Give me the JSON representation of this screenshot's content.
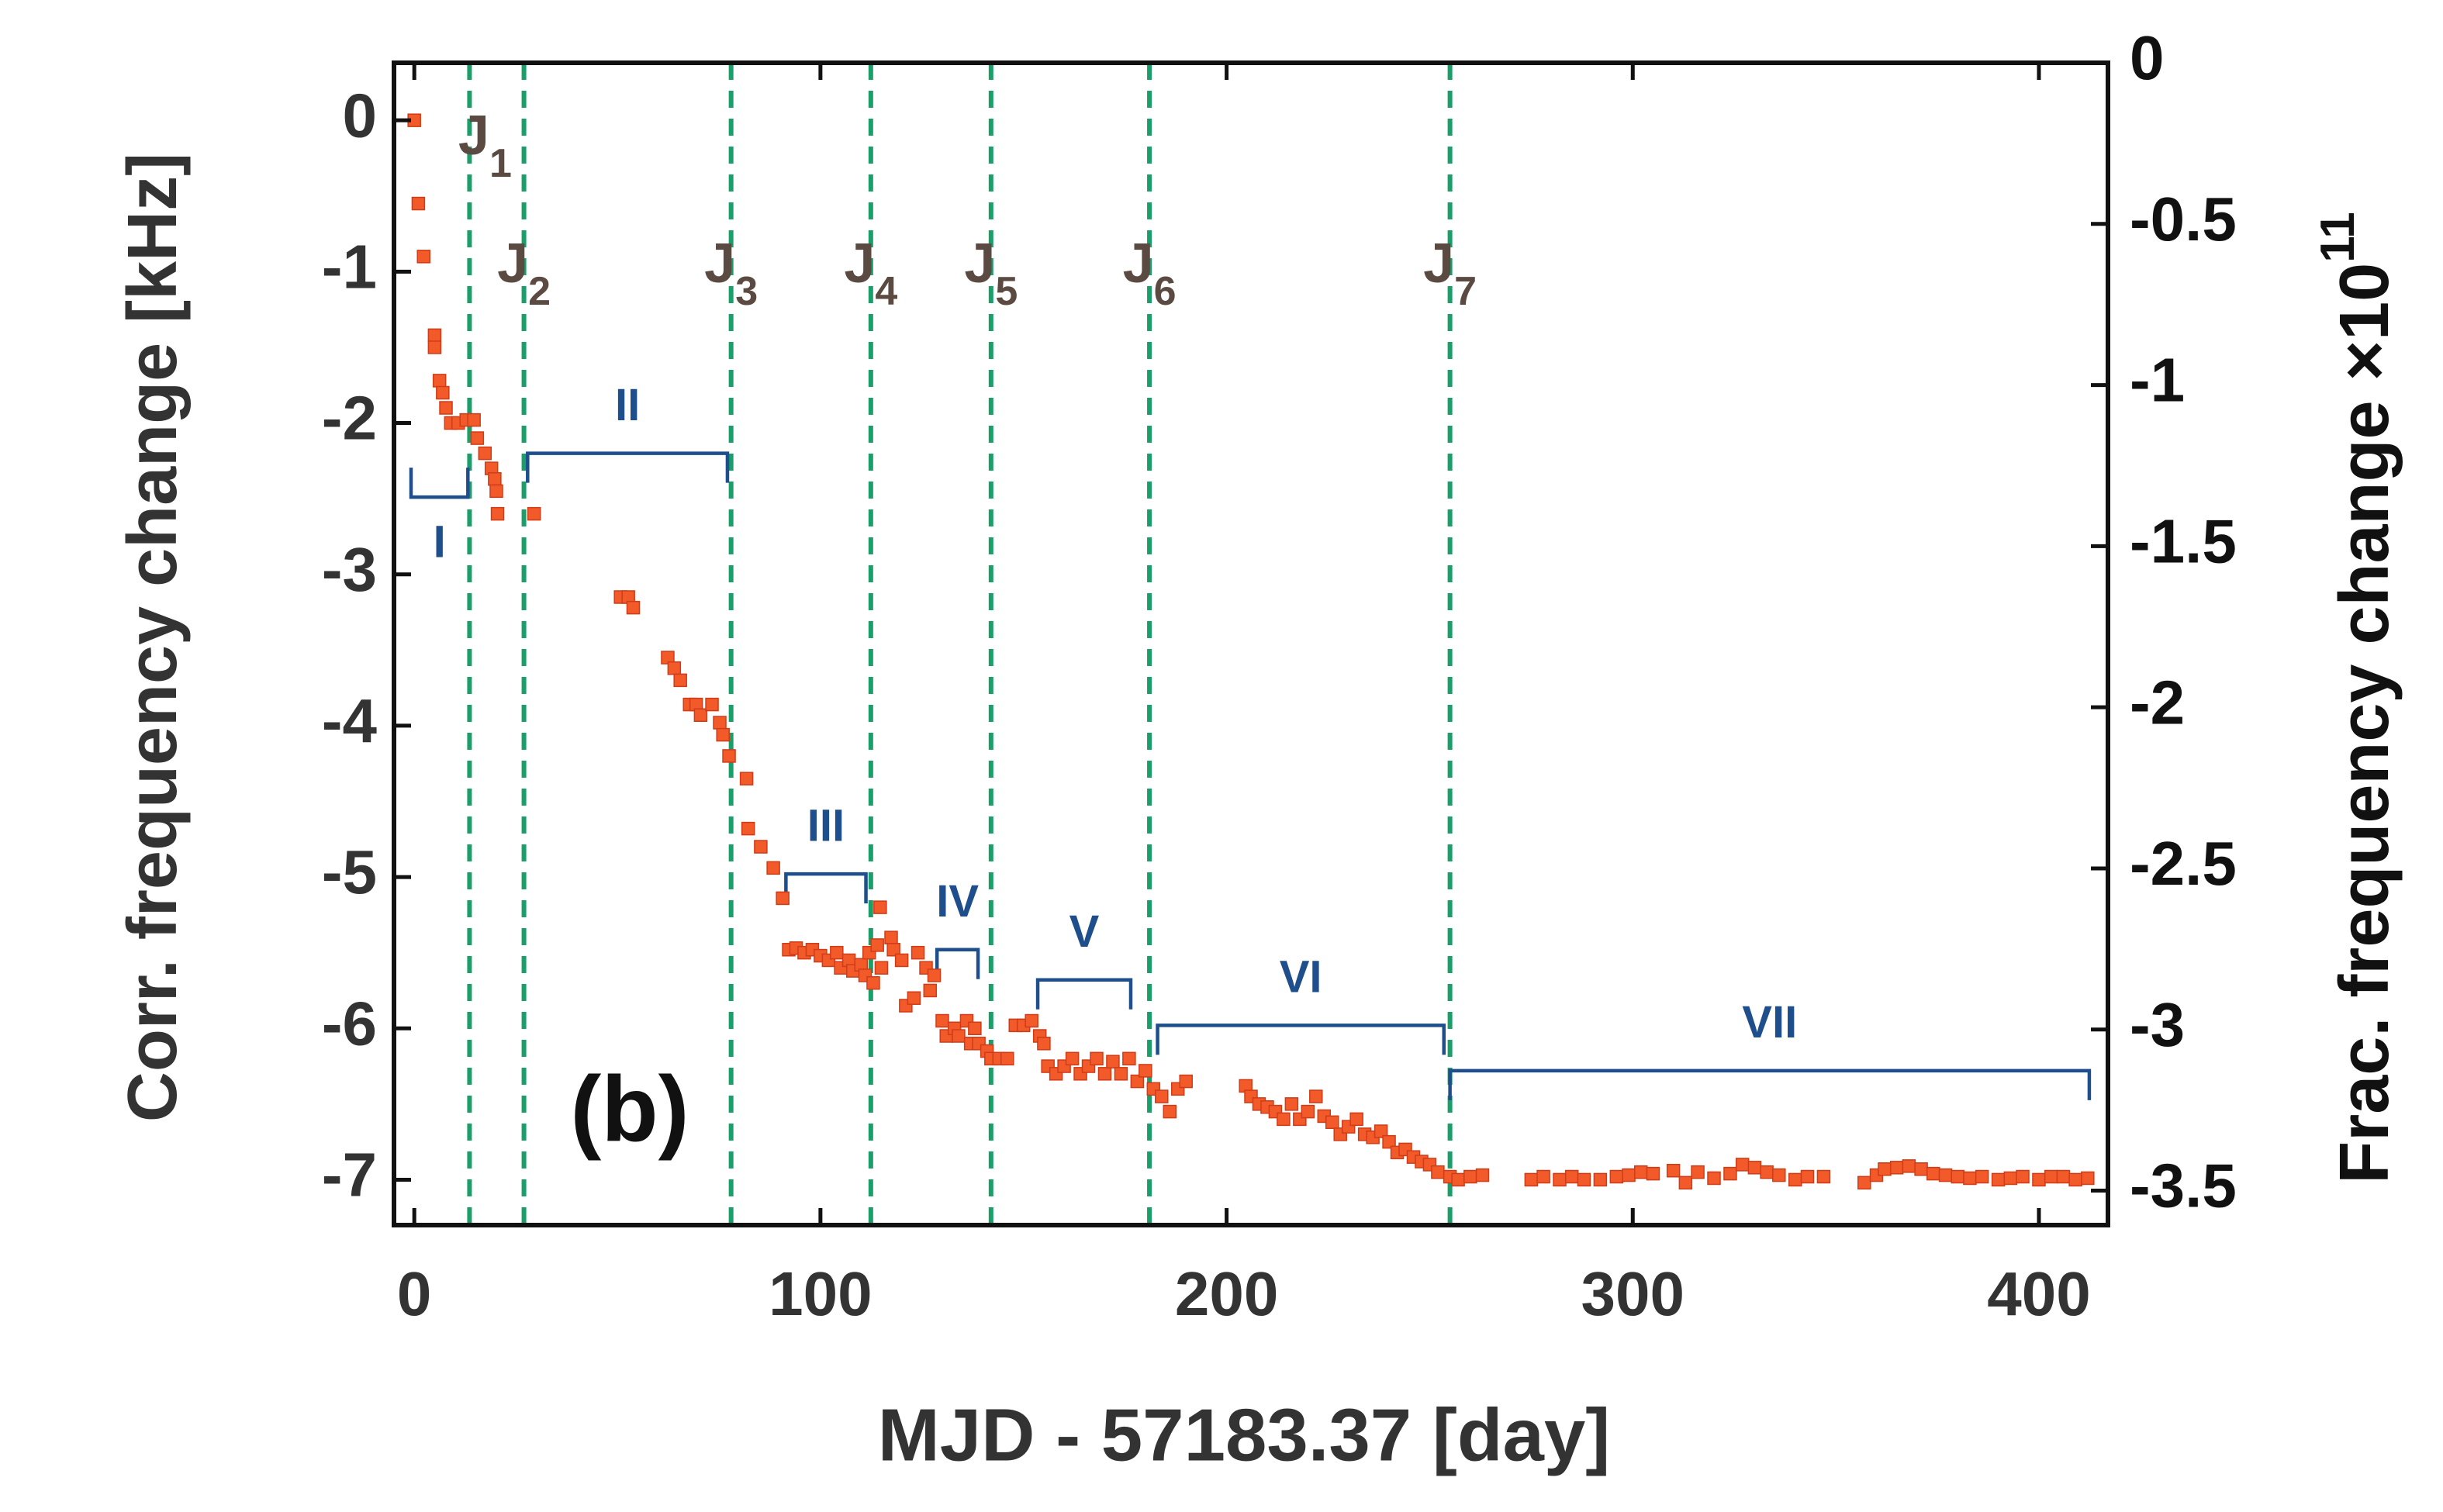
{
  "chart_data": {
    "type": "scatter",
    "xlabel": "MJD - 57183.37 [day]",
    "ylabel": "Corr. frequency change [kHz]",
    "y2label": "Frac. frequency change ×10",
    "y2label_exponent": "11",
    "color": "#f25a2a",
    "xlim": [
      -5,
      417
    ],
    "ylim": [
      -7.3,
      0.38
    ],
    "y2lim": [
      -3.607,
      0
    ],
    "xticks": [
      0,
      100,
      200,
      300,
      400
    ],
    "yticks": [
      0,
      -1,
      -2,
      -3,
      -4,
      -5,
      -6,
      -7
    ],
    "y2ticks": [
      0,
      -0.5,
      -1,
      -1.5,
      -2,
      -2.5,
      -3,
      -3.5
    ],
    "annotation": "(b)",
    "jumps": [
      {
        "name": "J",
        "subscript": "1",
        "x": 13.6
      },
      {
        "name": "J",
        "subscript": "2",
        "x": 27
      },
      {
        "name": "J",
        "subscript": "3",
        "x": 78
      },
      {
        "name": "J",
        "subscript": "4",
        "x": 112.4
      },
      {
        "name": "J",
        "subscript": "5",
        "x": 142
      },
      {
        "name": "J",
        "subscript": "6",
        "x": 181
      },
      {
        "name": "J",
        "subscript": "7",
        "x": 255
      }
    ],
    "intervals": [
      {
        "label": "I",
        "x": [
          -0.8,
          13.2
        ],
        "y": -2.49
      },
      {
        "label": "II",
        "x": [
          27.9,
          77.1
        ],
        "y": -2.2
      },
      {
        "label": "III",
        "x": [
          91.5,
          111.2
        ],
        "y": -4.98
      },
      {
        "label": "IV",
        "x": [
          128.7,
          138.8
        ],
        "y": -5.48
      },
      {
        "label": "V",
        "x": [
          153.5,
          176.4
        ],
        "y": -5.68
      },
      {
        "label": "VI",
        "x": [
          183,
          253.5
        ],
        "y": -5.98
      },
      {
        "label": "VII",
        "x": [
          255,
          412.4
        ],
        "y": -6.28
      }
    ],
    "x": [
      0,
      1,
      2.3,
      5,
      5,
      6.2,
      7,
      7.8,
      9,
      10.8,
      12.8,
      14.7,
      15.5,
      17.4,
      19,
      19.8,
      20.2,
      20.5,
      29.5,
      50.8,
      52.7,
      53.9,
      62.4,
      64,
      65.5,
      67.8,
      69.4,
      70.5,
      73.3,
      75.2,
      76,
      77.5,
      81.8,
      82.2,
      85.3,
      88.4,
      90.7,
      92.2,
      94,
      96,
      98,
      100,
      102,
      104,
      105,
      107,
      108,
      110,
      111,
      112,
      113,
      114,
      114.7,
      115,
      117.4,
      118,
      120,
      121,
      123,
      124,
      126,
      127,
      128,
      130,
      131,
      133,
      134,
      136,
      137,
      138,
      139,
      141,
      142,
      144,
      146,
      148,
      150,
      152,
      154,
      155,
      156,
      158,
      160,
      162,
      164,
      166,
      168,
      170,
      172,
      174,
      176,
      178,
      180,
      182,
      184,
      186,
      188,
      190,
      204.7,
      206,
      208,
      210,
      212,
      214,
      216,
      218,
      220,
      222,
      224,
      226,
      228,
      230,
      232,
      234,
      236,
      238,
      240,
      242,
      244,
      246,
      248,
      250,
      252,
      255,
      257,
      260,
      263,
      275,
      278,
      282,
      285,
      288,
      292,
      296,
      299,
      302,
      305,
      310,
      313,
      316,
      320,
      324,
      327,
      330,
      333,
      336,
      340,
      343,
      347,
      357,
      360,
      362,
      365,
      368,
      371,
      374,
      377,
      380,
      383,
      386,
      390,
      393,
      396,
      400,
      403,
      406,
      409,
      412
    ],
    "values": [
      0,
      -0.55,
      -0.9,
      -1.42,
      -1.5,
      -1.72,
      -1.8,
      -1.9,
      -2.0,
      -2.0,
      -1.98,
      -1.98,
      -2.1,
      -2.2,
      -2.3,
      -2.37,
      -2.45,
      -2.6,
      -2.6,
      -3.15,
      -3.15,
      -3.22,
      -3.55,
      -3.62,
      -3.7,
      -3.86,
      -3.86,
      -3.93,
      -3.86,
      -3.98,
      -4.06,
      -4.2,
      -4.35,
      -4.68,
      -4.8,
      -4.94,
      -5.14,
      -5.48,
      -5.47,
      -5.5,
      -5.48,
      -5.52,
      -5.55,
      -5.5,
      -5.6,
      -5.55,
      -5.62,
      -5.58,
      -5.65,
      -5.5,
      -5.7,
      -5.45,
      -5.2,
      -5.6,
      -5.4,
      -5.48,
      -5.55,
      -5.85,
      -5.8,
      -5.5,
      -5.6,
      -5.75,
      -5.65,
      -5.95,
      -6.05,
      -6.0,
      -6.05,
      -5.95,
      -6.1,
      -6.0,
      -6.1,
      -6.15,
      -6.2,
      -6.2,
      -6.2,
      -5.98,
      -5.98,
      -5.95,
      -6.05,
      -6.1,
      -6.25,
      -6.3,
      -6.25,
      -6.2,
      -6.3,
      -6.25,
      -6.2,
      -6.3,
      -6.22,
      -6.3,
      -6.2,
      -6.35,
      -6.28,
      -6.4,
      -6.45,
      -6.55,
      -6.4,
      -6.35,
      -6.38,
      -6.45,
      -6.5,
      -6.52,
      -6.55,
      -6.6,
      -6.5,
      -6.6,
      -6.55,
      -6.45,
      -6.58,
      -6.62,
      -6.7,
      -6.65,
      -6.6,
      -6.7,
      -6.72,
      -6.68,
      -6.75,
      -6.82,
      -6.8,
      -6.85,
      -6.88,
      -6.9,
      -6.95,
      -6.98,
      -7.0,
      -6.98,
      -6.97,
      -7.0,
      -6.98,
      -7.0,
      -6.98,
      -7.0,
      -7.0,
      -6.98,
      -6.97,
      -6.95,
      -6.96,
      -6.94,
      -7.02,
      -6.95,
      -6.99,
      -6.96,
      -6.9,
      -6.92,
      -6.95,
      -6.97,
      -7.0,
      -6.98,
      -6.98,
      -7.02,
      -6.97,
      -6.93,
      -6.92,
      -6.91,
      -6.93,
      -6.96,
      -6.97,
      -6.98,
      -6.99,
      -6.98,
      -7.0,
      -6.99,
      -6.98,
      -7.0,
      -6.98,
      -6.98,
      -7.0,
      -6.99
    ]
  }
}
